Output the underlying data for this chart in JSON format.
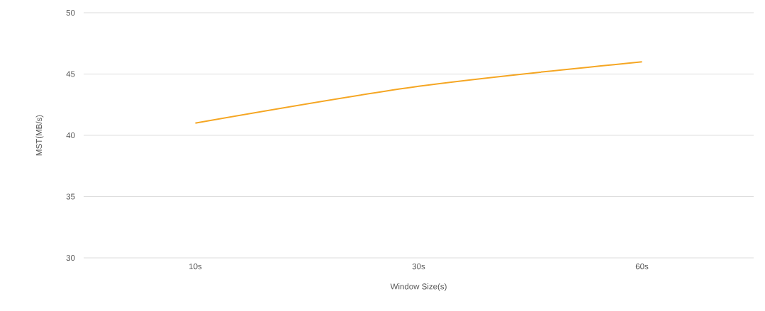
{
  "chart_data": {
    "type": "line",
    "xlabel": "Window Size(s)",
    "ylabel": "MST(MB/s)",
    "categories": [
      "10s",
      "30s",
      "60s"
    ],
    "series": [
      {
        "color": "#f5a623",
        "values": [
          41,
          44,
          46
        ]
      }
    ],
    "ylim": [
      30,
      50
    ],
    "yticks": [
      30,
      35,
      40,
      45,
      50
    ],
    "grid": "y",
    "marker": "none",
    "line_style": "solid"
  }
}
